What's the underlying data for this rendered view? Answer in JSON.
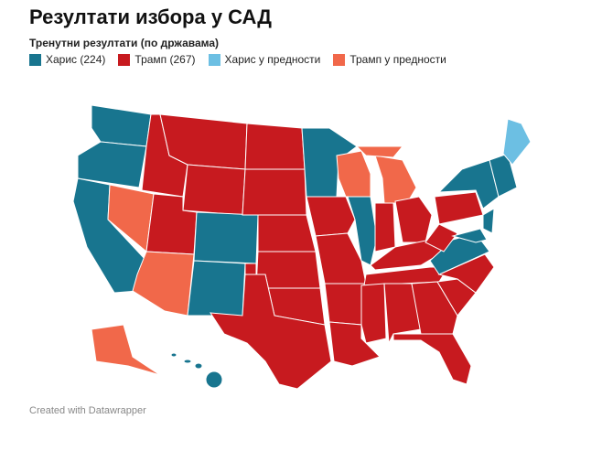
{
  "header": {
    "title": "Резултати избора у САД",
    "subtitle": "Тренутни резултати (по државама)"
  },
  "legend": [
    {
      "label": "Харис (224)",
      "color": "#18758f"
    },
    {
      "label": "Трамп (267)",
      "color": "#c71a1f"
    },
    {
      "label": "Харис у предности",
      "color": "#6cbfe3"
    },
    {
      "label": "Трамп у предности",
      "color": "#f1684a"
    }
  ],
  "footer": "Created with Datawrapper"
}
